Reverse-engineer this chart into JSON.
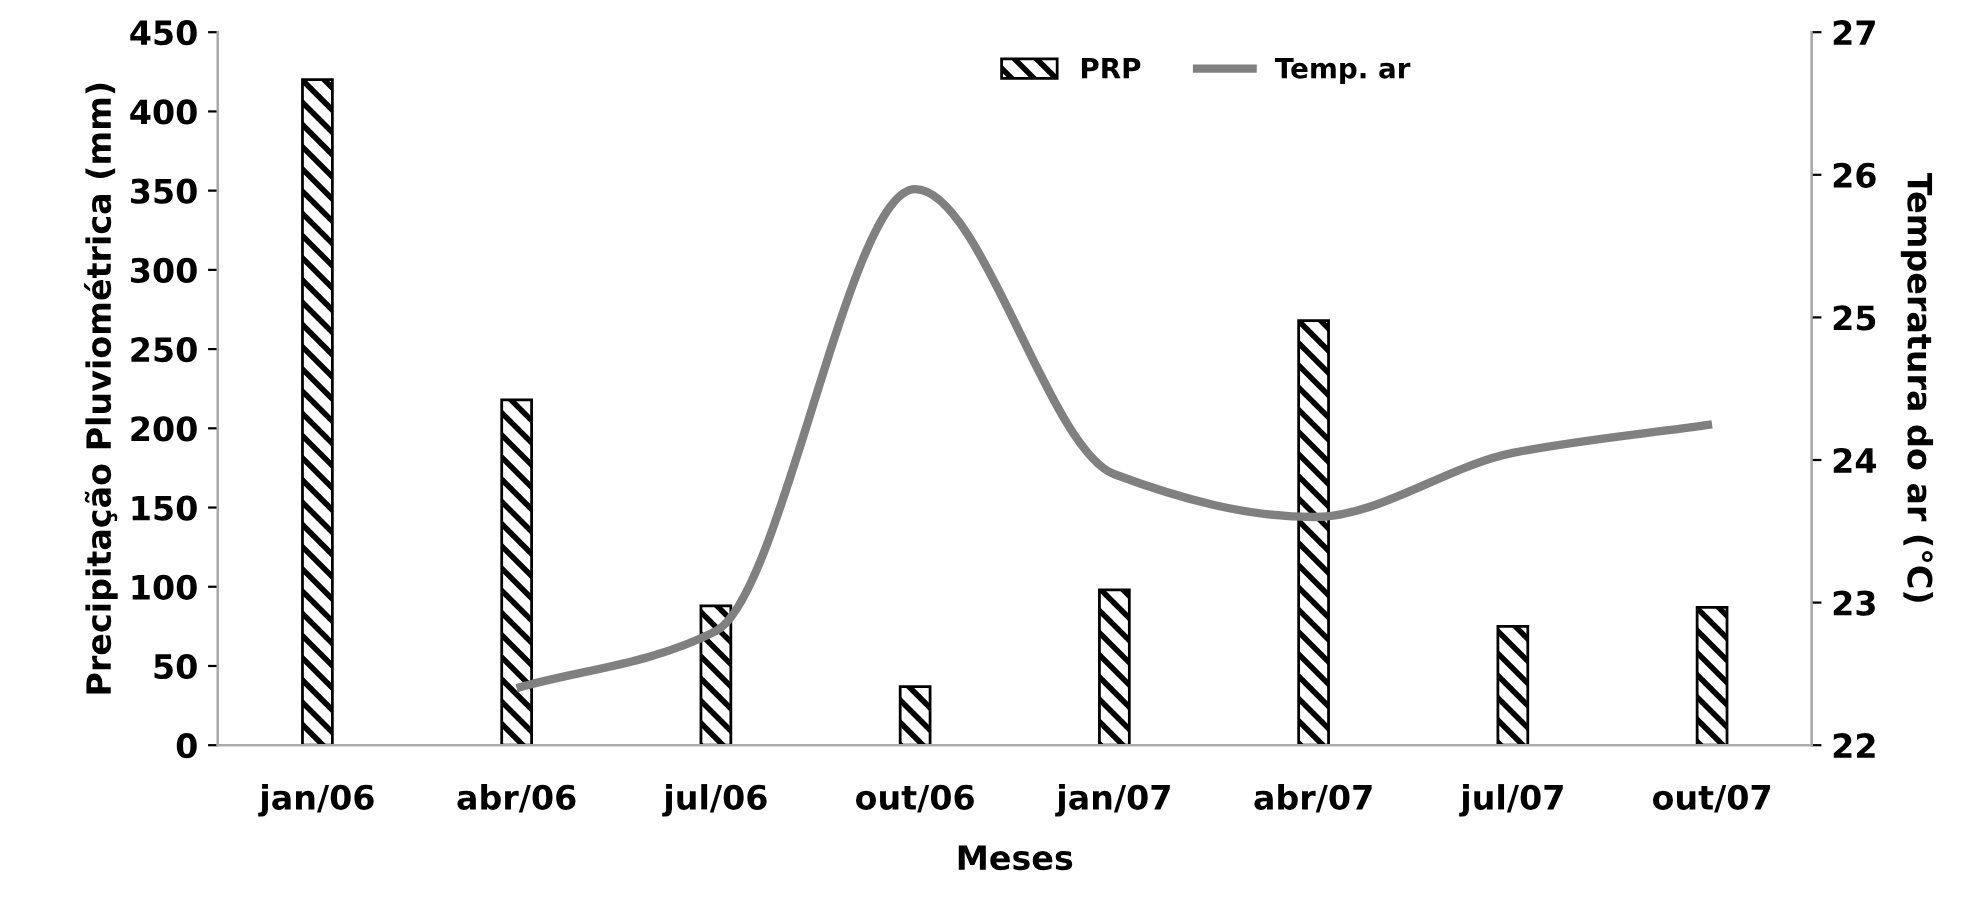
{
  "chart_data": {
    "type": "bar",
    "xlabel": "Meses",
    "ylabel": "Precipitação Pluviométrica (mm)",
    "y2label": "Temperatura do ar (°C)",
    "categories": [
      "jan/06",
      "abr/06",
      "jul/06",
      "out/06",
      "jan/07",
      "abr/07",
      "jul/07",
      "out/07"
    ],
    "series": [
      {
        "name": "PRP",
        "color": "#000000",
        "values": [
          420,
          218,
          88,
          37,
          98,
          268,
          75,
          87
        ]
      },
      {
        "name": "Temp. ar",
        "type": "line",
        "axis": "y2",
        "color": "#808080",
        "values": [
          null,
          22.4,
          22.8,
          25.9,
          23.9,
          23.6,
          24.05,
          24.25
        ]
      }
    ],
    "ylim": [
      0,
      450
    ],
    "yticks": [
      0,
      50,
      100,
      150,
      200,
      250,
      300,
      350,
      400,
      450
    ],
    "y2lim": [
      22,
      27
    ],
    "y2ticks": [
      22,
      23,
      24,
      25,
      26,
      27
    ],
    "grid": false,
    "legend": "top",
    "marker": "none",
    "line_style": "solid"
  }
}
